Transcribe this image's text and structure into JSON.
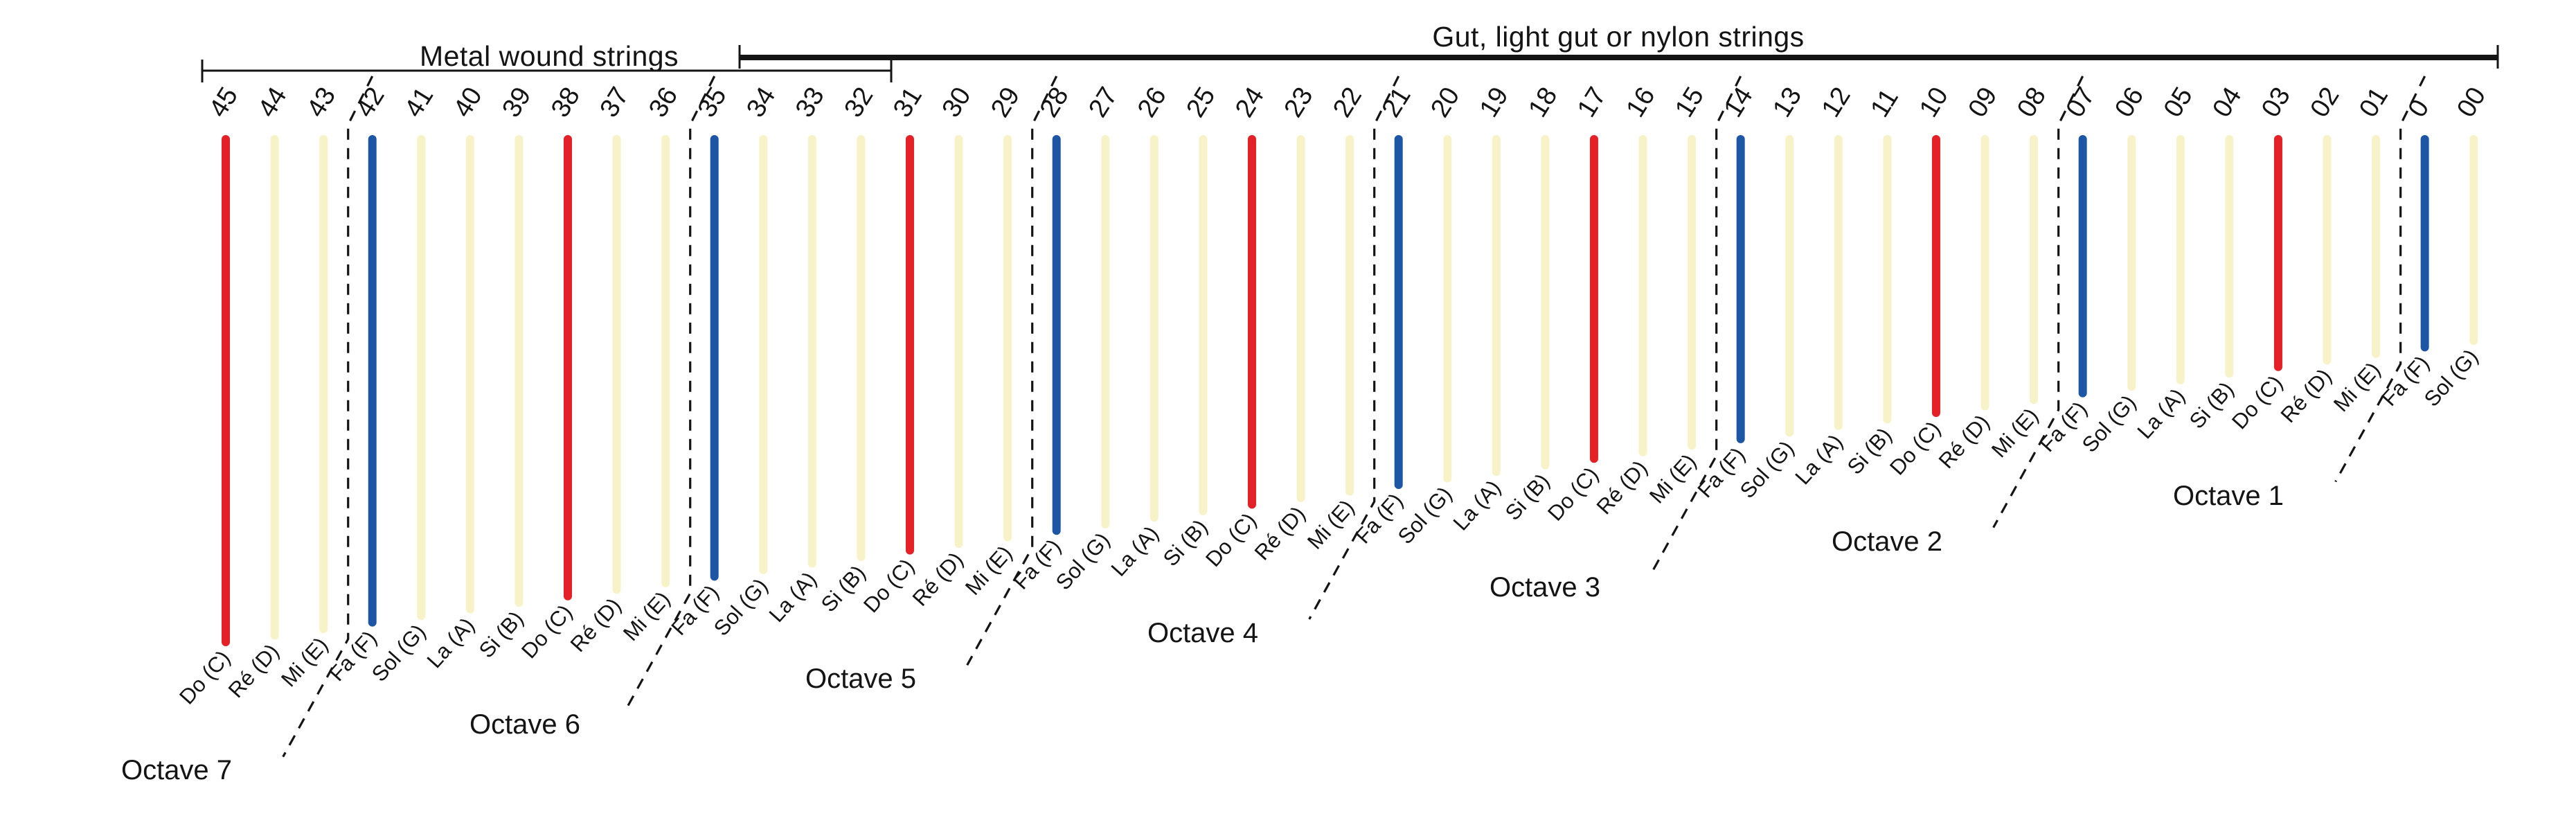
{
  "header": {
    "metal_label": "Metal wound strings",
    "gut_label": "Gut, light gut or nylon strings"
  },
  "octaves": [
    {
      "label": "Octave 7"
    },
    {
      "label": "Octave 6"
    },
    {
      "label": "Octave 5"
    },
    {
      "label": "Octave 4"
    },
    {
      "label": "Octave 3"
    },
    {
      "label": "Octave 2"
    },
    {
      "label": "Octave 1"
    }
  ],
  "colors": {
    "red": "#e32126",
    "blue": "#1c56a5",
    "plain": "#f8f2c8",
    "ink": "#141414"
  },
  "strings": [
    {
      "number": "45",
      "note": "Do (C)",
      "color": "red"
    },
    {
      "number": "44",
      "note": "Ré (D)",
      "color": "plain"
    },
    {
      "number": "43",
      "note": "Mi (E)",
      "color": "plain"
    },
    {
      "number": "42",
      "note": "Fa (F)",
      "color": "blue"
    },
    {
      "number": "41",
      "note": "Sol (G)",
      "color": "plain"
    },
    {
      "number": "40",
      "note": "La (A)",
      "color": "plain"
    },
    {
      "number": "39",
      "note": "Si (B)",
      "color": "plain"
    },
    {
      "number": "38",
      "note": "Do (C)",
      "color": "red"
    },
    {
      "number": "37",
      "note": "Ré (D)",
      "color": "plain"
    },
    {
      "number": "36",
      "note": "Mi (E)",
      "color": "plain"
    },
    {
      "number": "35",
      "note": "Fa (F)",
      "color": "blue"
    },
    {
      "number": "34",
      "note": "Sol (G)",
      "color": "plain"
    },
    {
      "number": "33",
      "note": "La (A)",
      "color": "plain"
    },
    {
      "number": "32",
      "note": "Si (B)",
      "color": "plain"
    },
    {
      "number": "31",
      "note": "Do (C)",
      "color": "red"
    },
    {
      "number": "30",
      "note": "Ré (D)",
      "color": "plain"
    },
    {
      "number": "29",
      "note": "Mi (E)",
      "color": "plain"
    },
    {
      "number": "28",
      "note": "Fa (F)",
      "color": "blue"
    },
    {
      "number": "27",
      "note": "Sol (G)",
      "color": "plain"
    },
    {
      "number": "26",
      "note": "La (A)",
      "color": "plain"
    },
    {
      "number": "25",
      "note": "Si (B)",
      "color": "plain"
    },
    {
      "number": "24",
      "note": "Do (C)",
      "color": "red"
    },
    {
      "number": "23",
      "note": "Ré (D)",
      "color": "plain"
    },
    {
      "number": "22",
      "note": "Mi (E)",
      "color": "plain"
    },
    {
      "number": "21",
      "note": "Fa (F)",
      "color": "blue"
    },
    {
      "number": "20",
      "note": "Sol (G)",
      "color": "plain"
    },
    {
      "number": "19",
      "note": "La (A)",
      "color": "plain"
    },
    {
      "number": "18",
      "note": "Si (B)",
      "color": "plain"
    },
    {
      "number": "17",
      "note": "Do (C)",
      "color": "red"
    },
    {
      "number": "16",
      "note": "Ré (D)",
      "color": "plain"
    },
    {
      "number": "15",
      "note": "Mi (E)",
      "color": "plain"
    },
    {
      "number": "14",
      "note": "Fa (F)",
      "color": "blue"
    },
    {
      "number": "13",
      "note": "Sol (G)",
      "color": "plain"
    },
    {
      "number": "12",
      "note": "La (A)",
      "color": "plain"
    },
    {
      "number": "11",
      "note": "Si (B)",
      "color": "plain"
    },
    {
      "number": "10",
      "note": "Do (C)",
      "color": "red"
    },
    {
      "number": "09",
      "note": "Ré (D)",
      "color": "plain"
    },
    {
      "number": "08",
      "note": "Mi (E)",
      "color": "plain"
    },
    {
      "number": "07",
      "note": "Fa (F)",
      "color": "blue"
    },
    {
      "number": "06",
      "note": "Sol (G)",
      "color": "plain"
    },
    {
      "number": "05",
      "note": "La (A)",
      "color": "plain"
    },
    {
      "number": "04",
      "note": "Si (B)",
      "color": "plain"
    },
    {
      "number": "03",
      "note": "Do (C)",
      "color": "red"
    },
    {
      "number": "02",
      "note": "Ré (D)",
      "color": "plain"
    },
    {
      "number": "01",
      "note": "Mi (E)",
      "color": "plain"
    },
    {
      "number": "0",
      "note": "Fa (F)",
      "color": "blue"
    },
    {
      "number": "00",
      "note": "Sol (G)",
      "color": "plain"
    }
  ]
}
